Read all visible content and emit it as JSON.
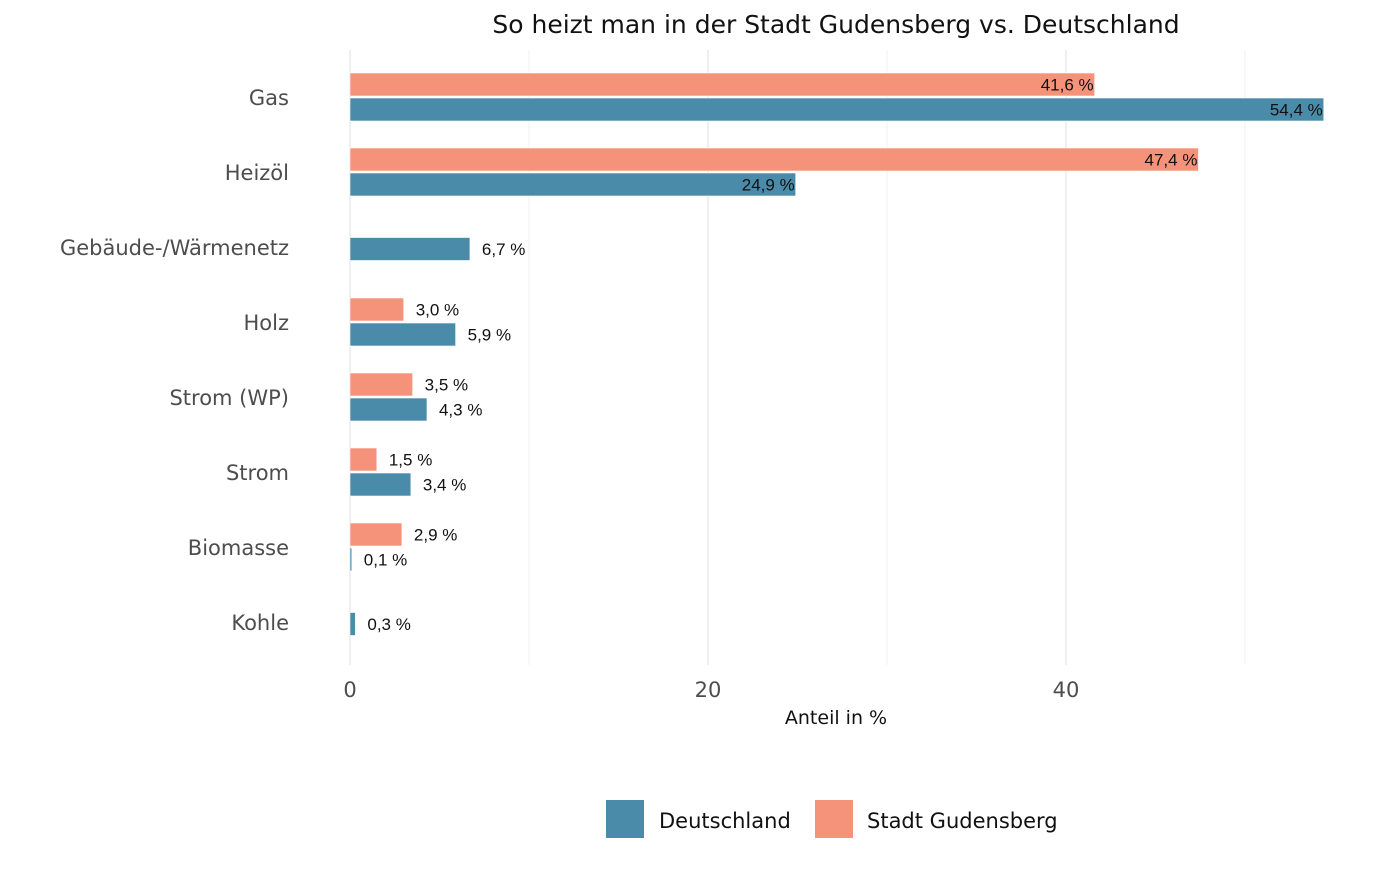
{
  "chart_data": {
    "type": "bar",
    "orientation": "horizontal",
    "title": "So heizt man in der Stadt Gudensberg vs. Deutschland",
    "xlabel": "Anteil in %",
    "ylabel": "",
    "xlim": [
      0,
      55
    ],
    "x_ticks": [
      0,
      20,
      40
    ],
    "x_tick_labels": [
      "0",
      "20",
      "40"
    ],
    "x_minor_gridlines": [
      10,
      30,
      50
    ],
    "grid": true,
    "legend_position": "bottom",
    "categories": [
      "Gas",
      "Heizöl",
      "Gebäude-/Wärmenetz",
      "Holz",
      "Strom (WP)",
      "Strom",
      "Biomasse",
      "Kohle"
    ],
    "series": [
      {
        "name": "Stadt Gudensberg",
        "color": "#F4927A",
        "values": [
          41.6,
          47.4,
          null,
          3.0,
          3.5,
          1.5,
          2.9,
          null
        ],
        "labels": [
          "41,6 %",
          "47,4 %",
          null,
          "3,0 %",
          "3,5 %",
          "1,5 %",
          "2,9 %",
          null
        ]
      },
      {
        "name": "Deutschland",
        "color": "#4B8BAA",
        "values": [
          54.4,
          24.9,
          6.7,
          5.9,
          4.3,
          3.4,
          0.1,
          0.3
        ],
        "labels": [
          "54,4 %",
          "24,9 %",
          "6,7 %",
          "5,9 %",
          "4,3 %",
          "3,4 %",
          "0,1 %",
          "0,3 %"
        ]
      }
    ],
    "legend": [
      {
        "name": "Deutschland",
        "color": "#4B8BAA"
      },
      {
        "name": "Stadt Gudensberg",
        "color": "#F4927A"
      }
    ]
  }
}
